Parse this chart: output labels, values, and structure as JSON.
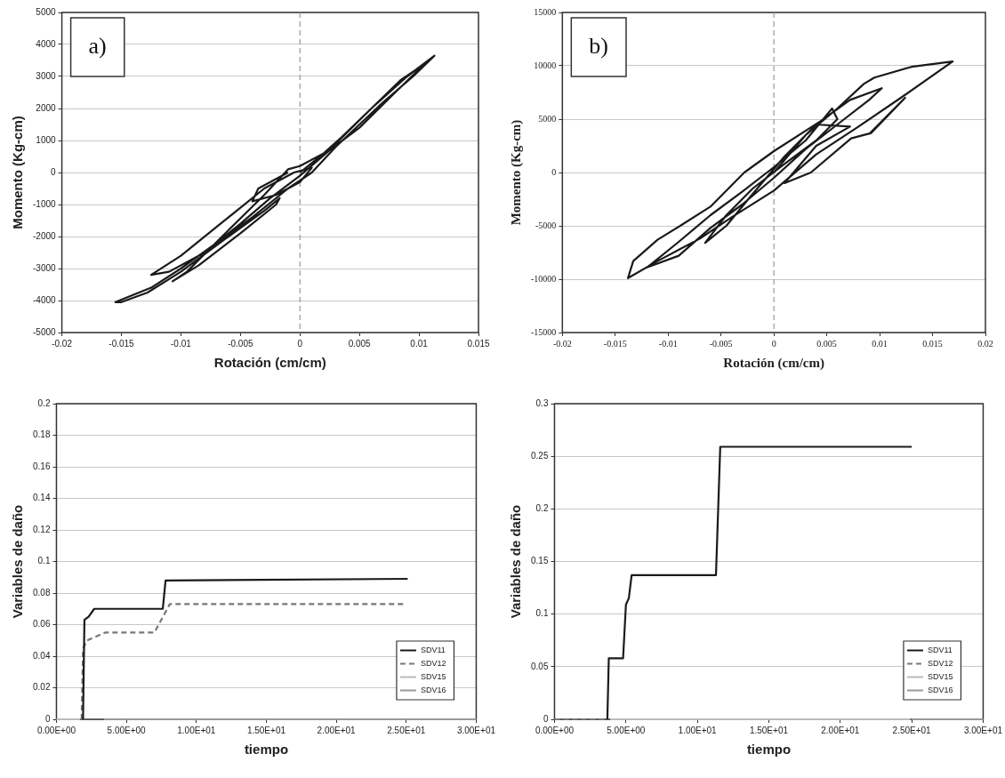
{
  "chart_data": [
    {
      "type": "line",
      "xlabel": "Rotación (cm/cm)",
      "ylabel": "Momento (Kg-cm)",
      "annotations": [
        "a)"
      ],
      "xlim": [
        -0.02,
        0.015
      ],
      "xticks": [
        -0.02,
        -0.015,
        -0.01,
        -0.005,
        0,
        0.005,
        0.01,
        0.015
      ],
      "ylim": [
        -5000,
        5000
      ],
      "yticks": [
        -5000,
        -4000,
        -3000,
        -2000,
        -1000,
        0,
        1000,
        2000,
        3000,
        4000,
        5000
      ],
      "grid": "y",
      "ref_lines": [
        {
          "axis": "x",
          "value": 0,
          "line_style": "dashed",
          "color": "#999999"
        }
      ],
      "series": [
        {
          "color": "#1a1a1a",
          "x": [
            0,
            0.003,
            0.006,
            0.009,
            0.0113,
            0.0095,
            0.007,
            0.005,
            0.003,
            0.001,
            -0.001,
            -0.004,
            -0.007,
            -0.01,
            -0.0125,
            -0.0155,
            -0.015,
            -0.0128,
            -0.01,
            -0.006,
            -0.003,
            -0.0017,
            -0.002,
            -0.005,
            -0.0085,
            -0.0107,
            -0.0095,
            -0.006,
            -0.003,
            -0.001,
            0,
            0.002,
            0.0035,
            0.006,
            0.0085,
            0.0105,
            0.008,
            0.005,
            0.0025,
            0,
            -0.0025,
            -0.005,
            -0.008,
            -0.011,
            -0.0125,
            -0.01,
            -0.007,
            -0.005,
            -0.003,
            -0.0005,
            0.001,
            0,
            -0.002,
            -0.004,
            -0.0035,
            -0.001
          ],
          "values": [
            0,
            900,
            2000,
            3000,
            3650,
            3000,
            2200,
            1500,
            800,
            0,
            -500,
            -1400,
            -2200,
            -3000,
            -3600,
            -4050,
            -4050,
            -3750,
            -3100,
            -2000,
            -1200,
            -800,
            -1000,
            -1900,
            -2900,
            -3400,
            -3100,
            -1800,
            -700,
            100,
            200,
            600,
            1100,
            2000,
            2900,
            3400,
            2500,
            1400,
            700,
            -100,
            -800,
            -1600,
            -2500,
            -3100,
            -3200,
            -2600,
            -1700,
            -1100,
            -500,
            0,
            150,
            -300,
            -700,
            -900,
            -500,
            0
          ]
        }
      ]
    },
    {
      "type": "line",
      "xlabel": "Rotación (cm/cm)",
      "ylabel": "Momento (Kg-cm)",
      "annotations": [
        "b)"
      ],
      "xlim": [
        -0.02,
        0.02
      ],
      "xticks": [
        -0.02,
        -0.015,
        -0.01,
        -0.005,
        0,
        0.005,
        0.01,
        0.015,
        0.02
      ],
      "ylim": [
        -15000,
        15000
      ],
      "yticks": [
        -15000,
        -10000,
        -5000,
        0,
        5000,
        10000,
        15000
      ],
      "grid": "y",
      "ref_lines": [
        {
          "axis": "x",
          "value": 0,
          "line_style": "dashed",
          "color": "#999999"
        }
      ],
      "series": [
        {
          "color": "#1a1a1a",
          "x": [
            0,
            0.003,
            0.006,
            0.0085,
            0.0095,
            0.013,
            0.0169,
            0.012,
            0.008,
            0.004,
            0,
            -0.004,
            -0.007,
            -0.011,
            -0.0138,
            -0.0133,
            -0.011,
            -0.0087,
            -0.006,
            -0.0028,
            0,
            0.0044,
            0.0072,
            0.0102,
            0.009,
            0.006,
            0.003,
            0,
            -0.003,
            -0.006,
            -0.009,
            -0.012,
            -0.009,
            -0.006,
            -0.003,
            0,
            0.003,
            0.0055,
            0.006,
            0.004,
            0.001,
            -0.002,
            -0.0045,
            -0.0065,
            -0.0045,
            -0.002,
            0.001,
            0.004,
            0.0072,
            0.004,
            0.001,
            0.0035,
            0.0073,
            0.0092,
            0.0124,
            0.009
          ],
          "values": [
            0,
            3500,
            6000,
            8300,
            8900,
            9900,
            10400,
            7000,
            4300,
            1700,
            -1700,
            -4200,
            -6200,
            -8300,
            -9900,
            -8300,
            -6300,
            -4900,
            -3200,
            0,
            2000,
            4800,
            6800,
            7900,
            6800,
            4500,
            2200,
            -500,
            -3000,
            -5200,
            -7800,
            -8900,
            -6500,
            -4000,
            -1800,
            500,
            3000,
            6000,
            5000,
            3000,
            800,
            -1500,
            -4000,
            -6600,
            -5000,
            -2000,
            1500,
            4500,
            4300,
            2500,
            -1000,
            0,
            3200,
            3700,
            7000,
            3600
          ]
        }
      ]
    },
    {
      "type": "line",
      "xlabel": "tiempo",
      "ylabel": "Variables de daño",
      "xlim": [
        0,
        30
      ],
      "xticks": [
        {
          "value": 0,
          "label": "0.00E+00"
        },
        {
          "value": 5,
          "label": "5.00E+00"
        },
        {
          "value": 10,
          "label": "1.00E+01"
        },
        {
          "value": 15,
          "label": "1.50E+01"
        },
        {
          "value": 20,
          "label": "2.00E+01"
        },
        {
          "value": 25,
          "label": "2.50E+01"
        },
        {
          "value": 30,
          "label": "3.00E+01"
        }
      ],
      "ylim": [
        0,
        0.2
      ],
      "yticks": [
        0,
        0.02,
        0.04,
        0.06,
        0.08,
        0.1,
        0.12,
        0.14,
        0.16,
        0.18,
        0.2
      ],
      "grid": "y",
      "legend": "bottom right",
      "series": [
        {
          "name": "SDV11",
          "color": "#1a1a1a",
          "x": [
            1.9,
            2.0,
            2.3,
            2.7,
            7.6,
            7.8,
            25.1
          ],
          "values": [
            0,
            0.063,
            0.065,
            0.07,
            0.07,
            0.088,
            0.089
          ]
        },
        {
          "name": "SDV12",
          "color": "#777777",
          "line_style": "dashed",
          "x": [
            1.8,
            1.9,
            2.2,
            3.5,
            7.0,
            8.1,
            24.8
          ],
          "values": [
            0,
            0.045,
            0.05,
            0.055,
            0.055,
            0.073,
            0.073
          ]
        },
        {
          "name": "SDV15",
          "color": "#bbbbbb",
          "x": [
            0,
            1.7
          ],
          "values": [
            0,
            0
          ]
        },
        {
          "name": "SDV16",
          "color": "#999999",
          "x": [
            3.4,
            30
          ],
          "values": [
            0,
            0
          ]
        }
      ]
    },
    {
      "type": "line",
      "xlabel": "tiempo",
      "ylabel": "Variables de daño",
      "xlim": [
        0,
        30
      ],
      "xticks": [
        {
          "value": 0,
          "label": "0.00E+00"
        },
        {
          "value": 5,
          "label": "5.00E+00"
        },
        {
          "value": 10,
          "label": "1.00E+01"
        },
        {
          "value": 15,
          "label": "1.50E+01"
        },
        {
          "value": 20,
          "label": "2.00E+01"
        },
        {
          "value": 25,
          "label": "2.50E+01"
        },
        {
          "value": 30,
          "label": "3.00E+01"
        }
      ],
      "ylim": [
        0,
        0.3
      ],
      "yticks": [
        0,
        0.05,
        0.1,
        0.15,
        0.2,
        0.25,
        0.3
      ],
      "grid": "y",
      "legend": "bottom right",
      "series": [
        {
          "name": "SDV11",
          "color": "#1a1a1a",
          "x": [
            3.7,
            3.8,
            4.8,
            5.0,
            5.2,
            5.4,
            11.3,
            11.6,
            25.0
          ],
          "values": [
            0,
            0.058,
            0.058,
            0.109,
            0.115,
            0.137,
            0.137,
            0.259,
            0.259
          ]
        },
        {
          "name": "SDV12",
          "color": "#777777",
          "line_style": "dashed",
          "x": [
            0,
            3.6
          ],
          "values": [
            0,
            0
          ]
        },
        {
          "name": "SDV15",
          "color": "#bbbbbb",
          "x": [
            3.9,
            24.9
          ],
          "values": [
            0,
            0
          ]
        },
        {
          "name": "SDV16",
          "color": "#999999",
          "x": [
            25,
            30
          ],
          "values": [
            0,
            0
          ]
        }
      ]
    }
  ]
}
